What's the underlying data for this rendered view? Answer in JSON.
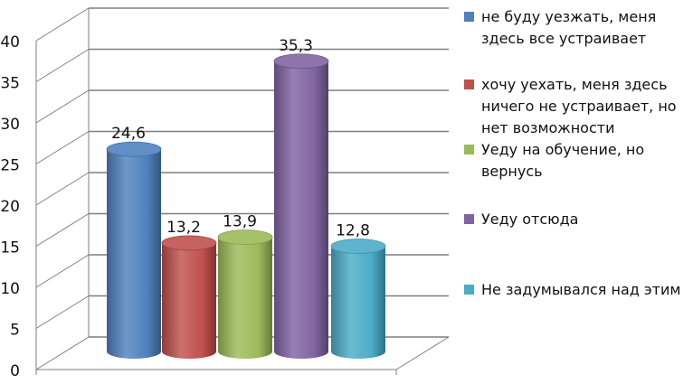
{
  "chart_data": {
    "type": "bar",
    "title": "",
    "xlabel": "",
    "ylabel": "",
    "ylim": [
      0,
      40
    ],
    "yticks": [
      0,
      5,
      10,
      15,
      20,
      25,
      30,
      35,
      40
    ],
    "grid": true,
    "legend_position": "right",
    "categories": [
      "не буду уезжать, меня здесь все устраивает",
      "хочу уехать, меня здесь ничего не устраивает, но нет возможности",
      "Уеду на обучение, но вернусь",
      "Уеду отсюда",
      "Не задумывался над этим"
    ],
    "values": [
      24.6,
      13.2,
      13.9,
      35.3,
      12.8
    ],
    "data_labels": [
      "24,6",
      "13,2",
      "13,9",
      "35,3",
      "12,8"
    ],
    "colors": [
      "#4f81bd",
      "#c0504d",
      "#9bbb59",
      "#8064a2",
      "#4bacc6"
    ]
  }
}
